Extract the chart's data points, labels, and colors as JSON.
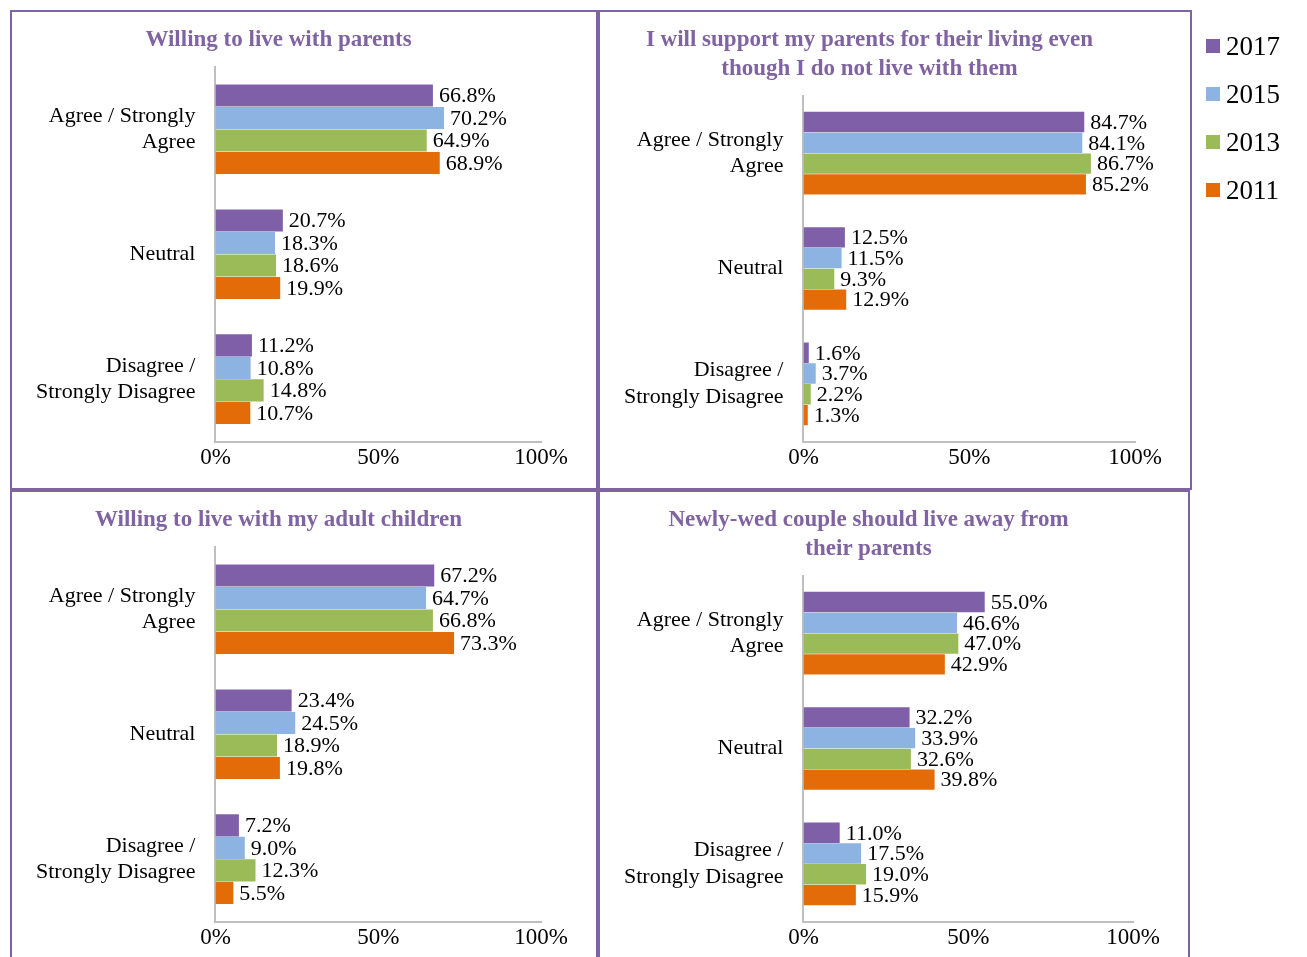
{
  "chart_data": [
    {
      "type": "bar",
      "orientation": "horizontal",
      "title": "Willing to live with parents",
      "categories": [
        "Agree / Strongly Agree",
        "Neutral",
        "Disagree / Strongly Disagree"
      ],
      "xlim": [
        0,
        100
      ],
      "xticks": [
        {
          "value": 0,
          "label": "0%"
        },
        {
          "value": 50,
          "label": "50%"
        },
        {
          "value": 100,
          "label": "100%"
        }
      ],
      "grid": false,
      "legend": false,
      "series": [
        {
          "color": "#7f60a8",
          "values": [
            66.8,
            20.7,
            11.2
          ],
          "value_labels": [
            "66.8%",
            "20.7%",
            "11.2%"
          ]
        },
        {
          "color": "#8db3e2",
          "values": [
            70.2,
            18.3,
            10.8
          ],
          "value_labels": [
            "70.2%",
            "18.3%",
            "10.8%"
          ]
        },
        {
          "color": "#9bbb59",
          "values": [
            64.9,
            18.6,
            14.8
          ],
          "value_labels": [
            "64.9%",
            "18.6%",
            "14.8%"
          ]
        },
        {
          "color": "#e36c09",
          "values": [
            68.9,
            19.9,
            10.7
          ],
          "value_labels": [
            "68.9%",
            "19.9%",
            "10.7%"
          ]
        }
      ]
    },
    {
      "type": "bar",
      "orientation": "horizontal",
      "title": "I will support my parents for their living even though I do not live with them",
      "categories": [
        "Agree / Strongly Agree",
        "Neutral",
        "Disagree / Strongly Disagree"
      ],
      "xlim": [
        0,
        100
      ],
      "xticks": [
        {
          "value": 0,
          "label": "0%"
        },
        {
          "value": 50,
          "label": "50%"
        },
        {
          "value": 100,
          "label": "100%"
        }
      ],
      "grid": false,
      "legend": "right",
      "series": [
        {
          "name": "2017",
          "color": "#7f60a8",
          "values": [
            84.7,
            12.5,
            1.6
          ],
          "value_labels": [
            "84.7%",
            "12.5%",
            "1.6%"
          ]
        },
        {
          "name": "2015",
          "color": "#8db3e2",
          "values": [
            84.1,
            11.5,
            3.7
          ],
          "value_labels": [
            "84.1%",
            "11.5%",
            "3.7%"
          ]
        },
        {
          "name": "2013",
          "color": "#9bbb59",
          "values": [
            86.7,
            9.3,
            2.2
          ],
          "value_labels": [
            "86.7%",
            "9.3%",
            "2.2%"
          ]
        },
        {
          "name": "2011",
          "color": "#e36c09",
          "values": [
            85.2,
            12.9,
            1.3
          ],
          "value_labels": [
            "85.2%",
            "12.9%",
            "1.3%"
          ]
        }
      ]
    },
    {
      "type": "bar",
      "orientation": "horizontal",
      "title": "Willing to live with my adult children",
      "categories": [
        "Agree / Strongly Agree",
        "Neutral",
        "Disagree / Strongly Disagree"
      ],
      "xlim": [
        0,
        100
      ],
      "xticks": [
        {
          "value": 0,
          "label": "0%"
        },
        {
          "value": 50,
          "label": "50%"
        },
        {
          "value": 100,
          "label": "100%"
        }
      ],
      "grid": false,
      "legend": false,
      "series": [
        {
          "color": "#7f60a8",
          "values": [
            67.2,
            23.4,
            7.2
          ],
          "value_labels": [
            "67.2%",
            "23.4%",
            "7.2%"
          ]
        },
        {
          "color": "#8db3e2",
          "values": [
            64.7,
            24.5,
            9.0
          ],
          "value_labels": [
            "64.7%",
            "24.5%",
            "9.0%"
          ]
        },
        {
          "color": "#9bbb59",
          "values": [
            66.8,
            18.9,
            12.3
          ],
          "value_labels": [
            "66.8%",
            "18.9%",
            "12.3%"
          ]
        },
        {
          "color": "#e36c09",
          "values": [
            73.3,
            19.8,
            5.5
          ],
          "value_labels": [
            "73.3%",
            "19.8%",
            "5.5%"
          ]
        }
      ]
    },
    {
      "type": "bar",
      "orientation": "horizontal",
      "title": "Newly-wed couple should live away from their parents",
      "categories": [
        "Agree / Strongly Agree",
        "Neutral",
        "Disagree / Strongly Disagree"
      ],
      "xlim": [
        0,
        100
      ],
      "xticks": [
        {
          "value": 0,
          "label": "0%"
        },
        {
          "value": 50,
          "label": "50%"
        },
        {
          "value": 100,
          "label": "100%"
        }
      ],
      "grid": false,
      "legend": false,
      "series": [
        {
          "color": "#7f60a8",
          "values": [
            55.0,
            32.2,
            11.0
          ],
          "value_labels": [
            "55.0%",
            "32.2%",
            "11.0%"
          ]
        },
        {
          "color": "#8db3e2",
          "values": [
            46.6,
            33.9,
            17.5
          ],
          "value_labels": [
            "46.6%",
            "33.9%",
            "17.5%"
          ]
        },
        {
          "color": "#9bbb59",
          "values": [
            47.0,
            32.6,
            19.0
          ],
          "value_labels": [
            "47.0%",
            "32.6%",
            "19.0%"
          ]
        },
        {
          "color": "#e36c09",
          "values": [
            42.9,
            39.8,
            15.9
          ],
          "value_labels": [
            "42.9%",
            "39.8%",
            "15.9%"
          ]
        }
      ]
    }
  ]
}
